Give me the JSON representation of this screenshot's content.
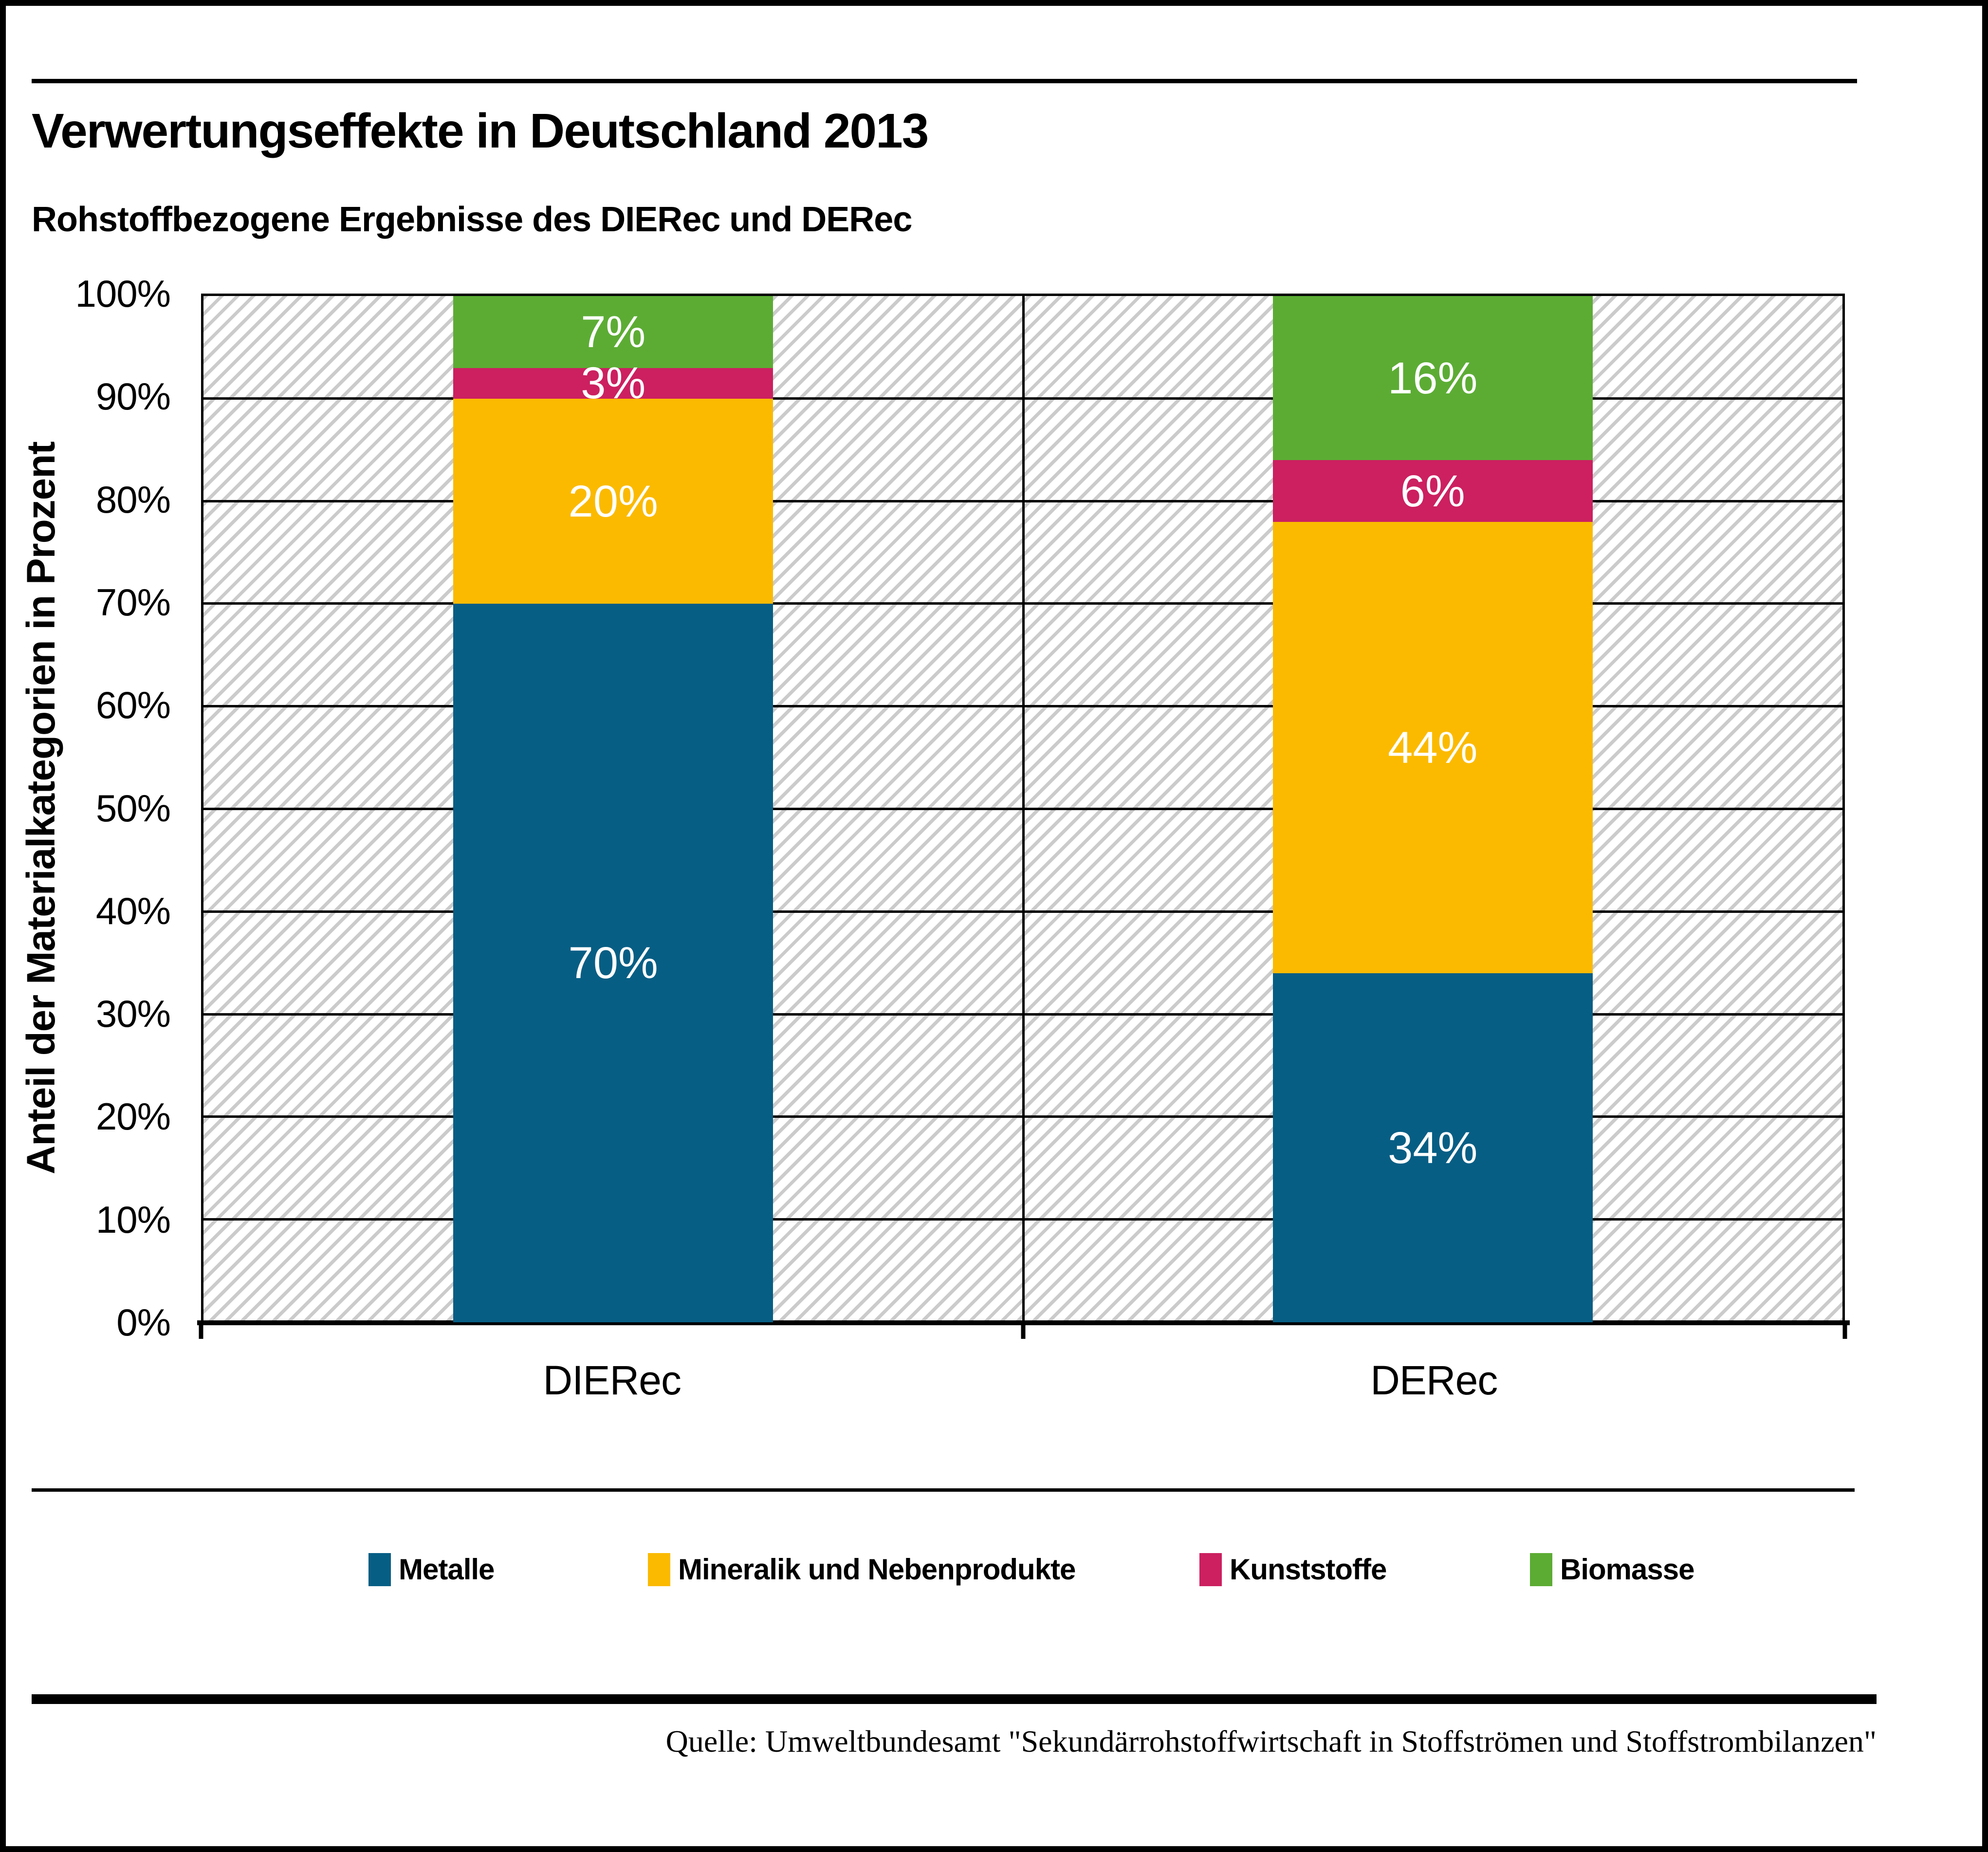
{
  "page": {
    "source": "Quelle: Umweltbundesamt \"Sekundärrohstoffwirtschaft in Stoffströmen und Stoffstrombilanzen\""
  },
  "chart_data": {
    "type": "bar",
    "stacked": true,
    "title": "Verwertungseffekte in Deutschland 2013",
    "subtitle": "Rohstoffbezogene Ergebnisse des DIERec und DERec",
    "categories": [
      "DIERec",
      "DERec"
    ],
    "series": [
      {
        "name": "Metalle",
        "color": "#075E84",
        "values": [
          70,
          34
        ]
      },
      {
        "name": "Mineralik und Nebenprodukte",
        "color": "#FBBA00",
        "values": [
          20,
          44
        ]
      },
      {
        "name": "Kunststoffe",
        "color": "#CC2060",
        "values": [
          3,
          6
        ]
      },
      {
        "name": "Biomasse",
        "color": "#5CAC34",
        "values": [
          7,
          16
        ]
      }
    ],
    "ylabel": "Anteil der Materialkategorien in Prozent",
    "ylim": [
      0,
      100
    ],
    "yticks": [
      "0%",
      "10%",
      "20%",
      "30%",
      "40%",
      "50%",
      "60%",
      "70%",
      "80%",
      "90%",
      "100%"
    ],
    "value_suffix": "%",
    "grid": true,
    "plot_background": "hatched-diagonal",
    "gridline_color": "#000000",
    "legend_position": "bottom",
    "bar_centers_pct": [
      25,
      75
    ],
    "legend_x": [
      745,
      1319,
      2452,
      3131
    ]
  }
}
